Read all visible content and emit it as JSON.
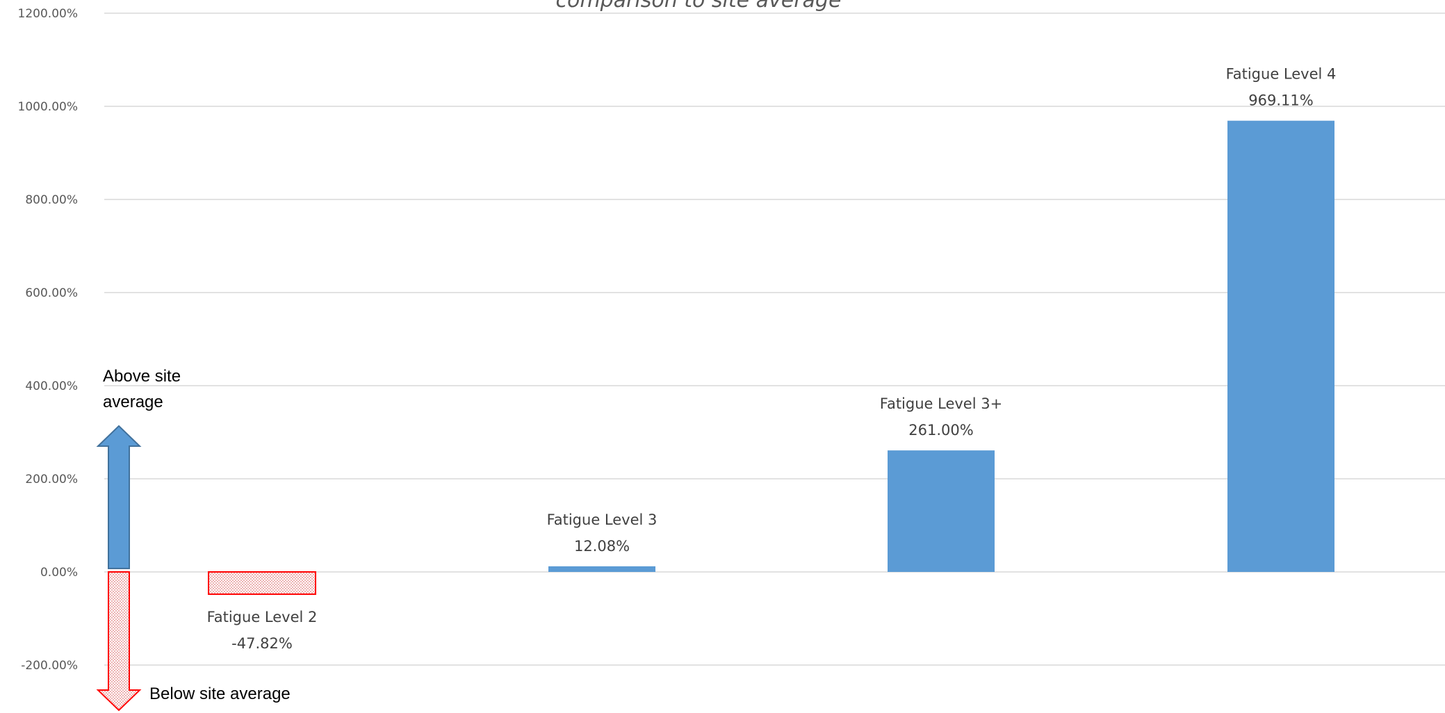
{
  "chart_data": {
    "type": "bar",
    "title": "comparison to site average",
    "categories": [
      "Fatigue Level 2",
      "Fatigue Level 3",
      "Fatigue Level 3+",
      "Fatigue Level 4"
    ],
    "values": [
      -47.82,
      12.08,
      261.0,
      969.11
    ],
    "value_labels": [
      "-47.82%",
      "12.08%",
      "261.00%",
      "969.11%"
    ],
    "y_ticks": [
      -200,
      0,
      200,
      400,
      600,
      800,
      1000,
      1200
    ],
    "y_tick_labels": [
      "-200.00%",
      "0.00%",
      "200.00%",
      "400.00%",
      "600.00%",
      "800.00%",
      "1000.00%",
      "1200.00%"
    ],
    "ylim": [
      -300,
      1200
    ],
    "grid": true,
    "legend": "none",
    "colors": {
      "positive": "#5b9bd5",
      "negative_fill": "#f4c6c6",
      "negative_stroke": "#ff0000",
      "grid": "#d9d9d9"
    },
    "annotations": {
      "above_line1": "Above site",
      "above_line2": "average",
      "below": "Below site average"
    }
  }
}
